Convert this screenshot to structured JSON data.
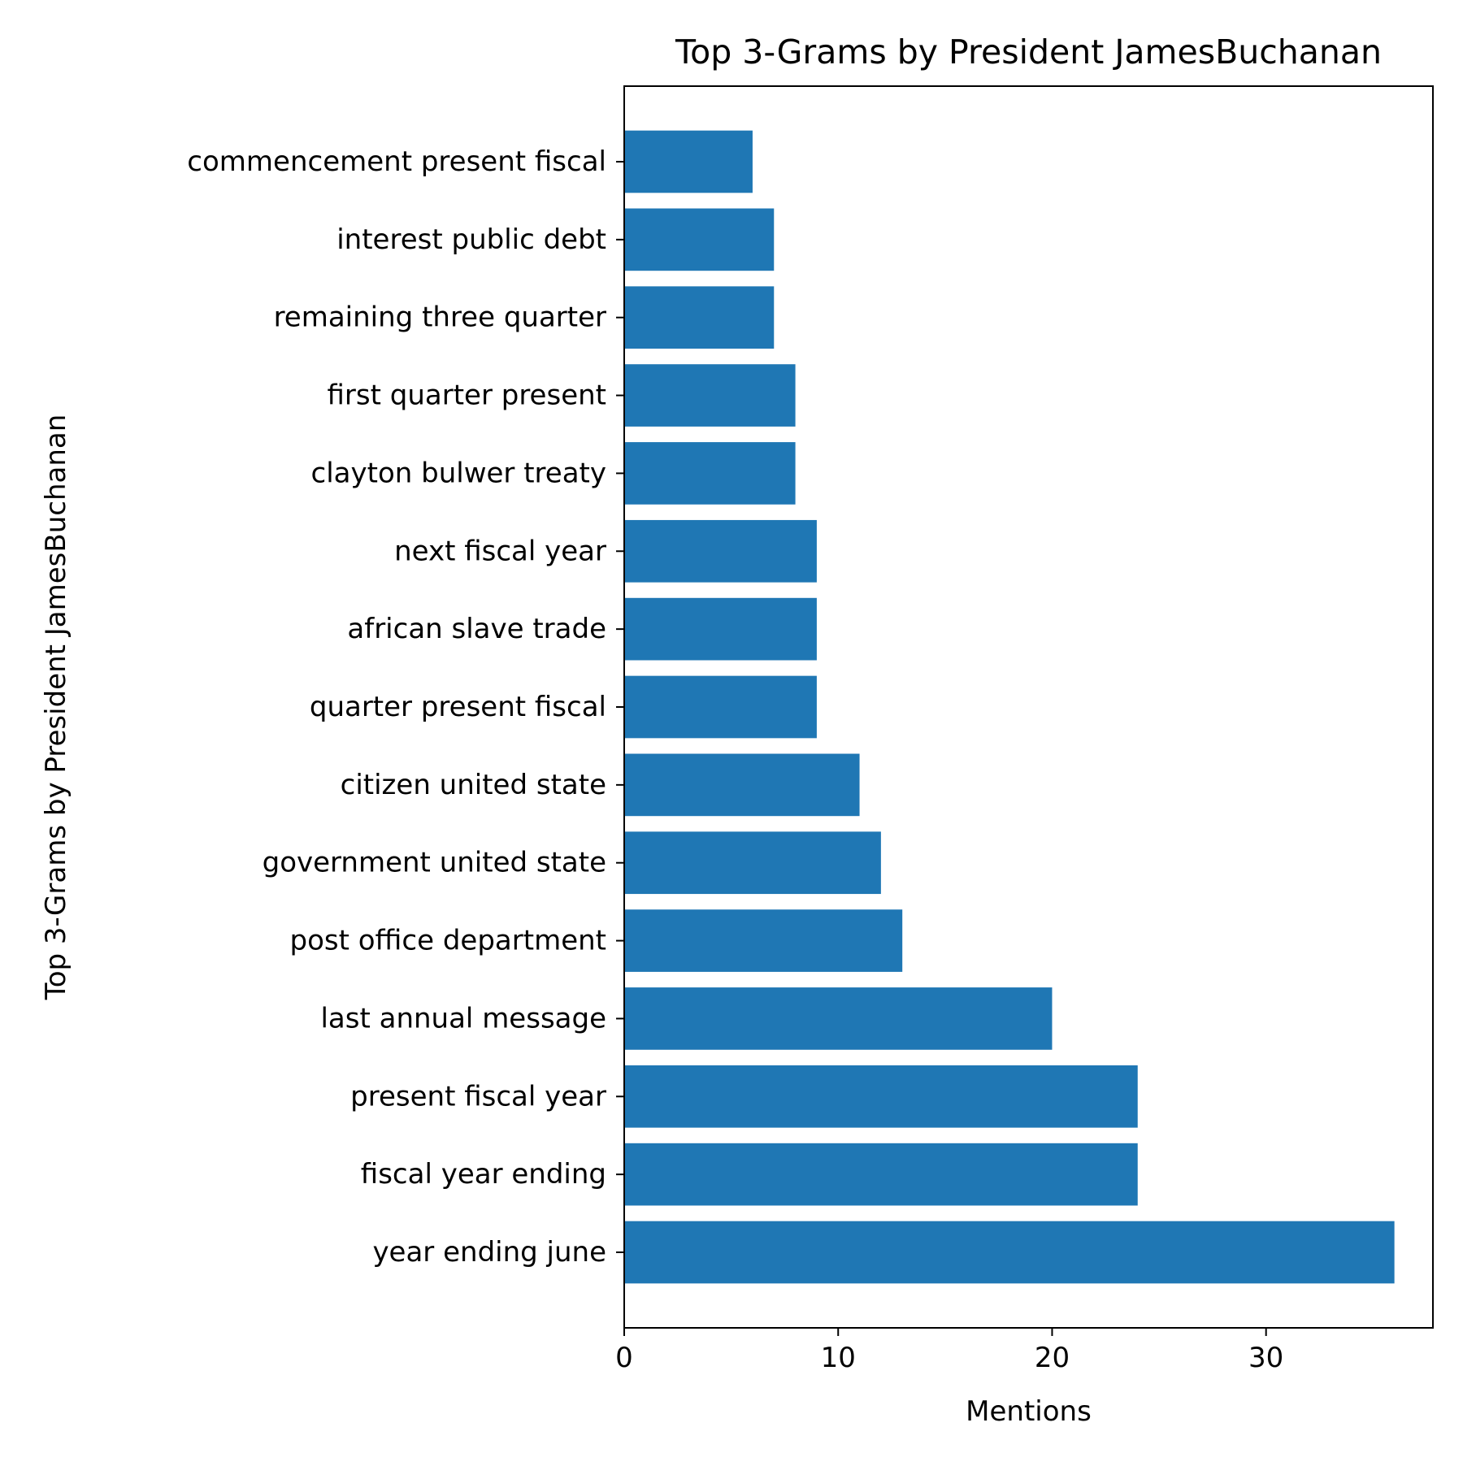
{
  "chart_data": {
    "type": "bar",
    "orientation": "horizontal",
    "title": "Top 3-Grams by President JamesBuchanan",
    "xlabel": "Mentions",
    "ylabel": "Top 3-Grams by President JamesBuchanan",
    "xlim": [
      0,
      37.8
    ],
    "xticks": [
      0,
      10,
      20,
      30
    ],
    "grid": false,
    "legend": false,
    "bar_color": "#1f77b4",
    "categories": [
      "year ending june",
      "fiscal year ending",
      "present fiscal year",
      "last annual message",
      "post office department",
      "government united state",
      "citizen united state",
      "quarter present fiscal",
      "african slave trade",
      "next fiscal year",
      "clayton bulwer treaty",
      "first quarter present",
      "remaining three quarter",
      "interest public debt",
      "commencement present fiscal"
    ],
    "values": [
      36,
      24,
      24,
      20,
      13,
      12,
      11,
      9,
      9,
      9,
      8,
      8,
      7,
      7,
      6
    ]
  }
}
